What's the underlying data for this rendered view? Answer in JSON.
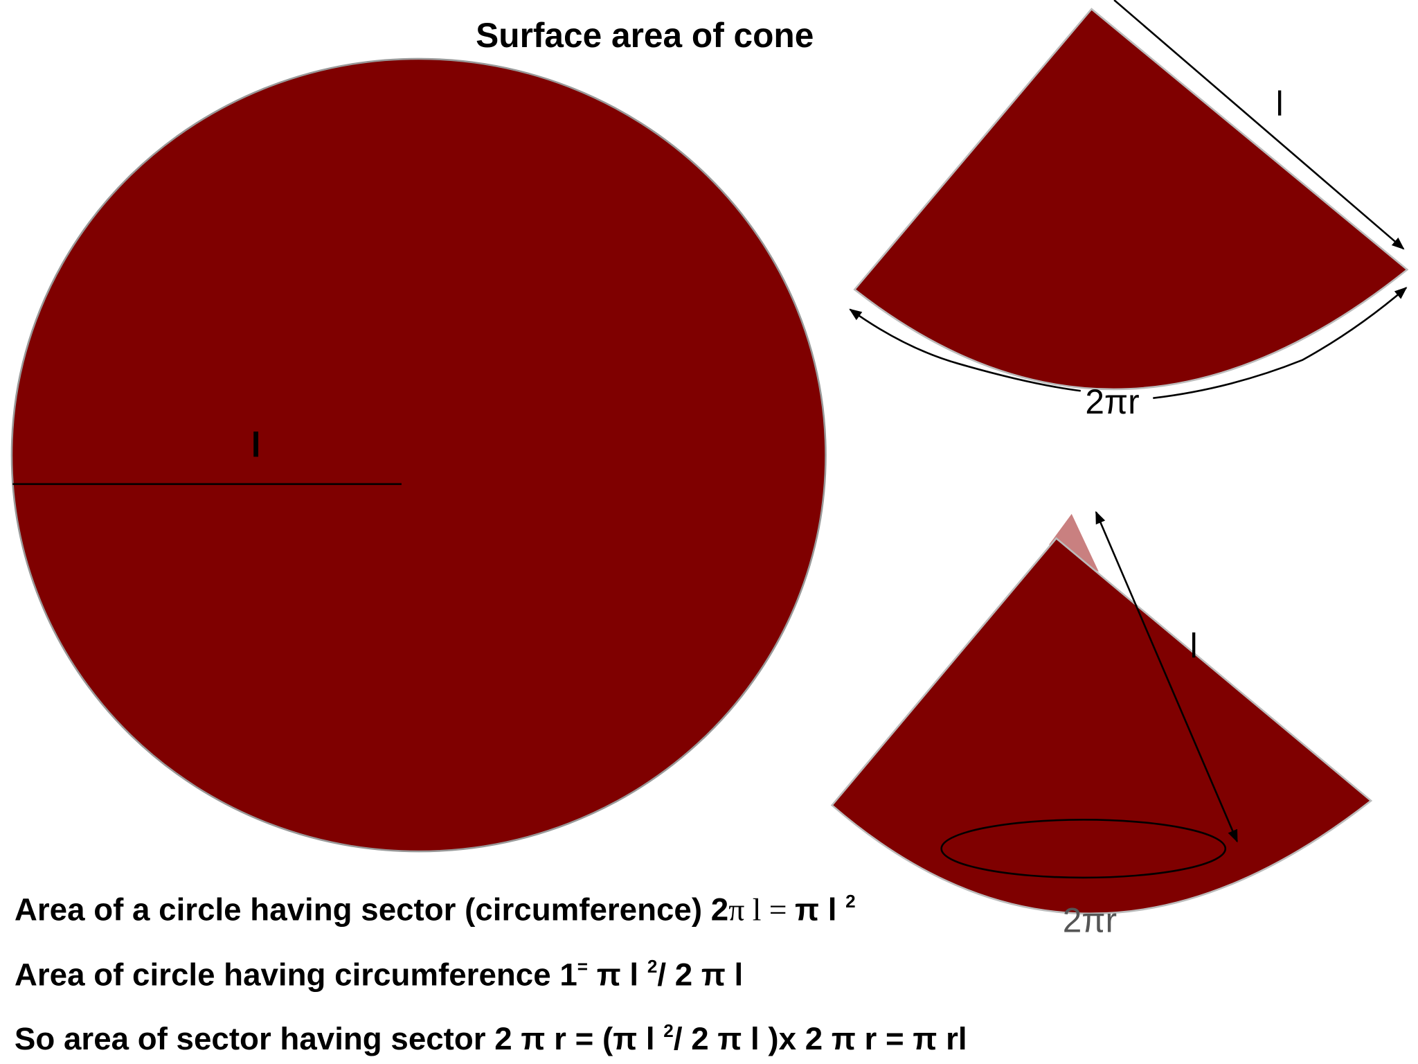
{
  "header": {
    "title": "Surface area of cone"
  },
  "circle": {
    "radius_label": "l"
  },
  "sector": {
    "slant_label": "l",
    "arc_label": "2πr"
  },
  "cone": {
    "slant_label": "l",
    "arc_label": "2πr"
  },
  "formulas": [
    {
      "parts": [
        "Area  of a circle having  sector (circumference) 2",
        "π l = ",
        "π l ",
        "2"
      ]
    },
    {
      "parts": [
        "Area of circle having circumference 1",
        "=",
        " π l ",
        "2",
        "/ 2 π l"
      ]
    },
    {
      "parts": [
        "So area of sector having sector 2 π r  = (π l ",
        "2",
        "/ 2 π l )x 2 π r =  π rl"
      ]
    }
  ]
}
